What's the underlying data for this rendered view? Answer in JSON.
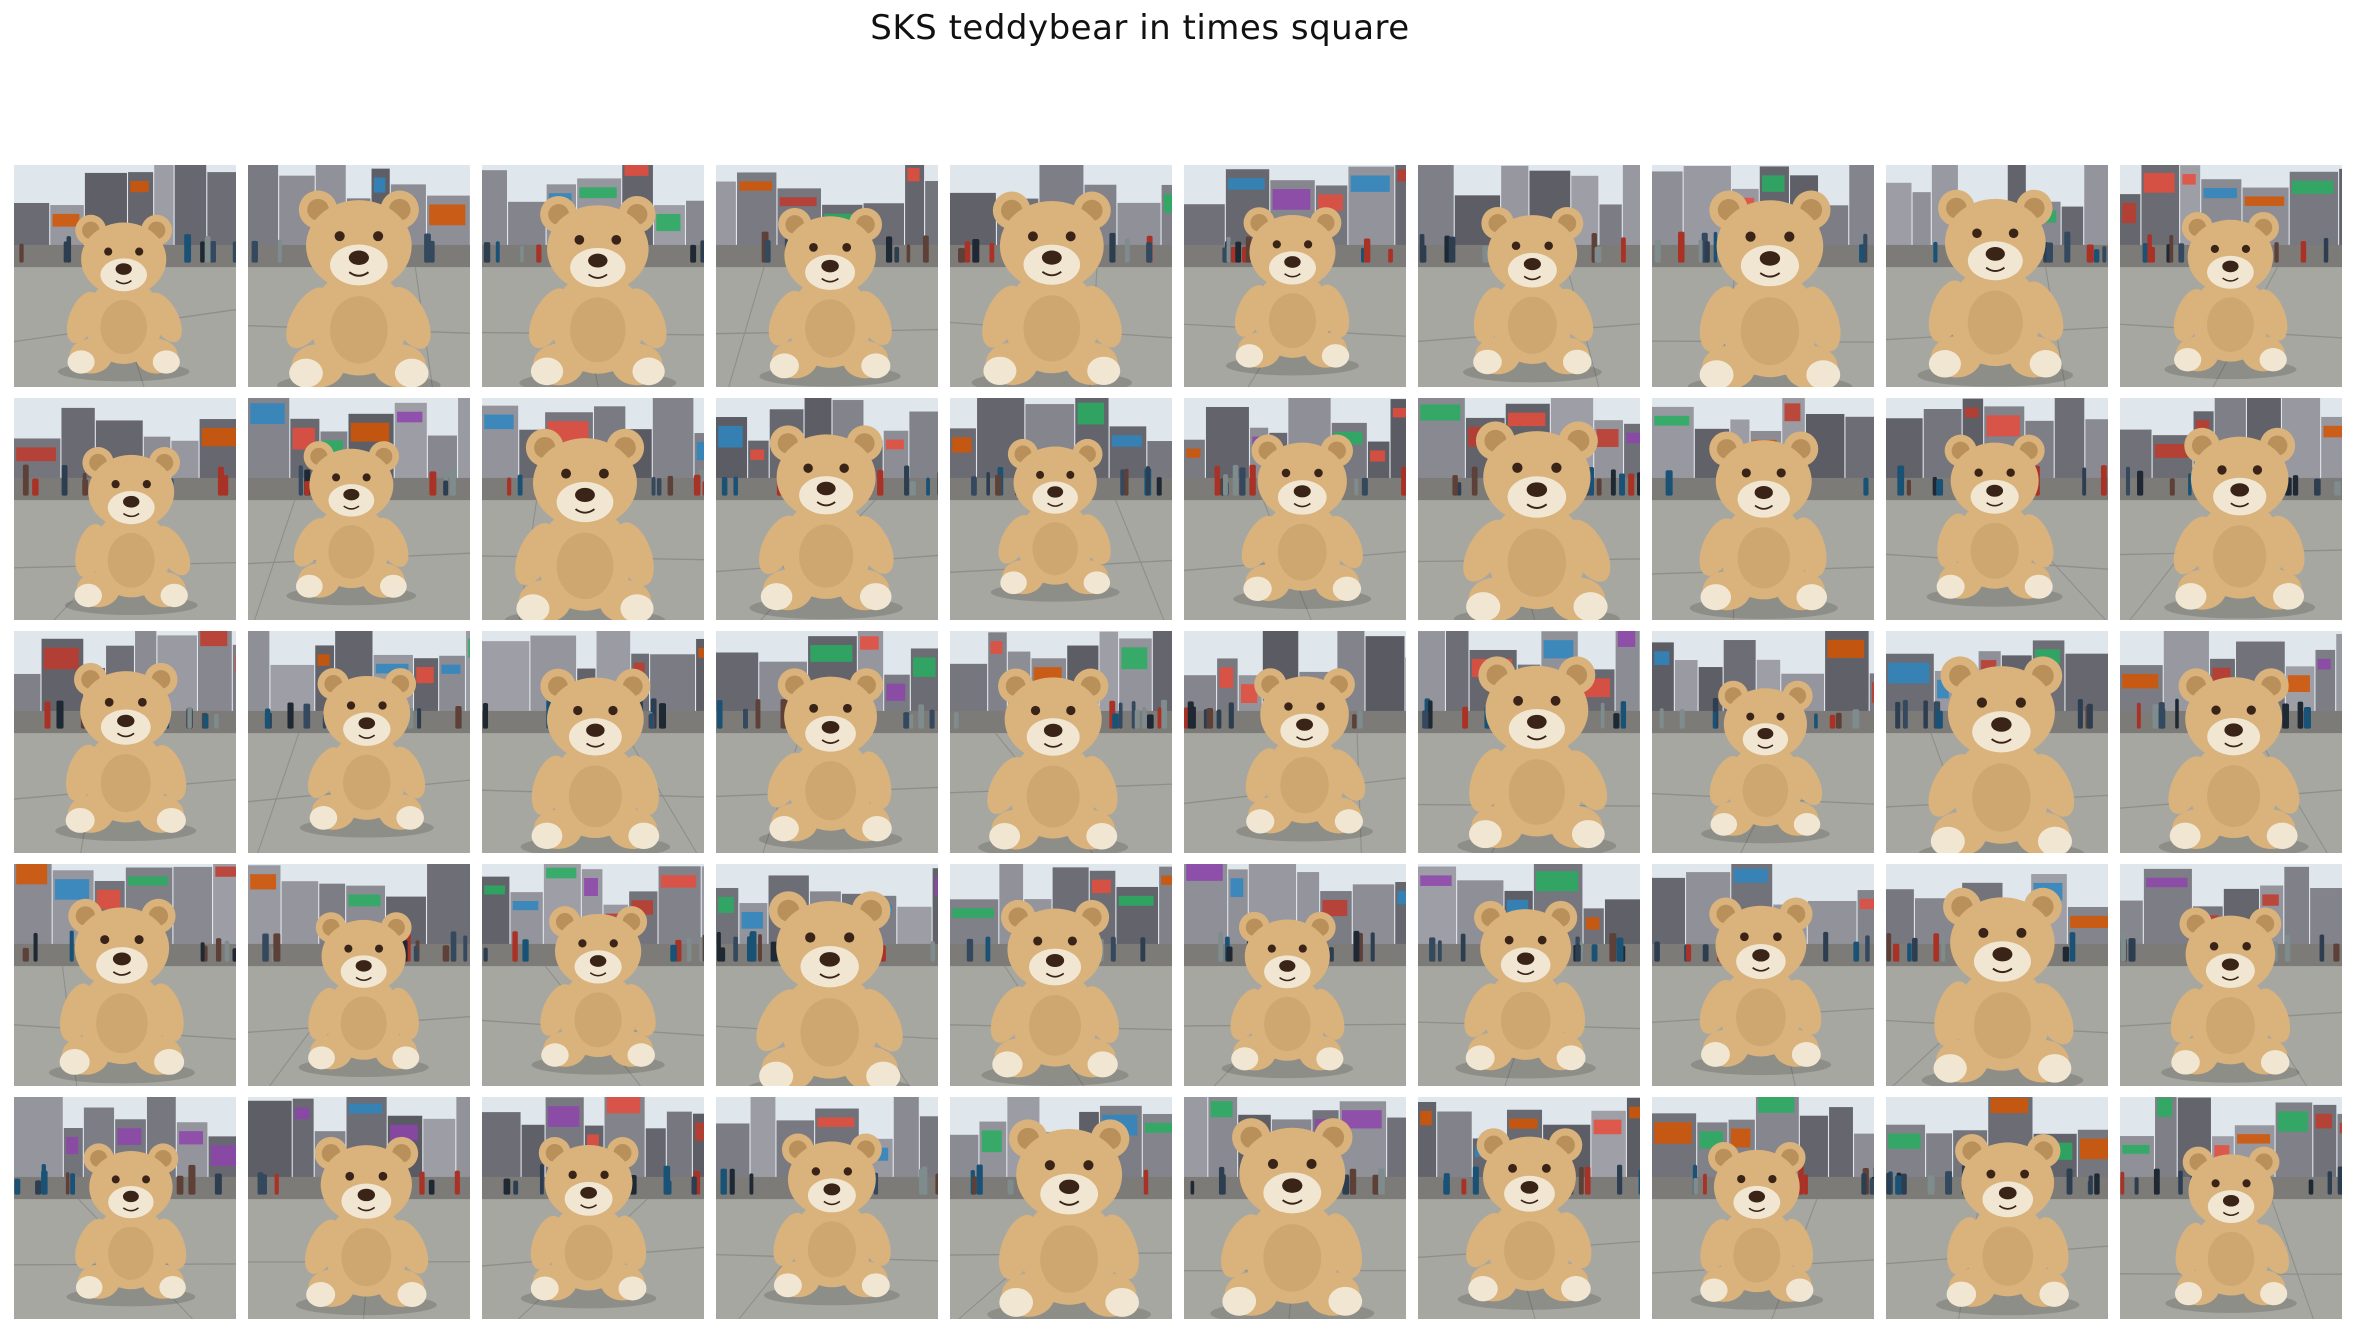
{
  "title": "SKS teddybear in times square",
  "grid": {
    "rows": 5,
    "columns": 10,
    "tile_count": 50,
    "subject": "teddy-bear",
    "scene": "times-square-street"
  },
  "colors": {
    "background": "#ffffff",
    "fur": "#d9b27c",
    "fur_shade": "#b98f5a",
    "muzzle": "#f1e6d2",
    "nose": "#3a2418",
    "pavement": "#a7a7a2",
    "buildings": "#6f7078",
    "sky": "#dfe6ec"
  }
}
